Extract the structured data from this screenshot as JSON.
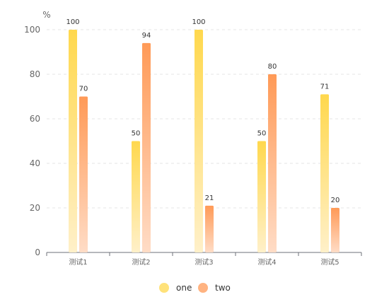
{
  "chart_data": {
    "type": "bar",
    "unit": "%",
    "categories": [
      "测试1",
      "测试2",
      "测试3",
      "测试4",
      "测试5"
    ],
    "series": [
      {
        "name": "one",
        "values": [
          100,
          50,
          100,
          50,
          71
        ]
      },
      {
        "name": "two",
        "values": [
          70,
          94,
          21,
          80,
          20
        ]
      }
    ],
    "ylim": [
      0,
      100
    ],
    "yticks": [
      0,
      20,
      40,
      60,
      80,
      100
    ],
    "grid": true,
    "legend": "bottom-center"
  },
  "colors": {
    "one_top": "#ffd84d",
    "one_bottom": "#fff0c9",
    "two_top": "#ff9a57",
    "two_bottom": "#ffdcc6"
  }
}
